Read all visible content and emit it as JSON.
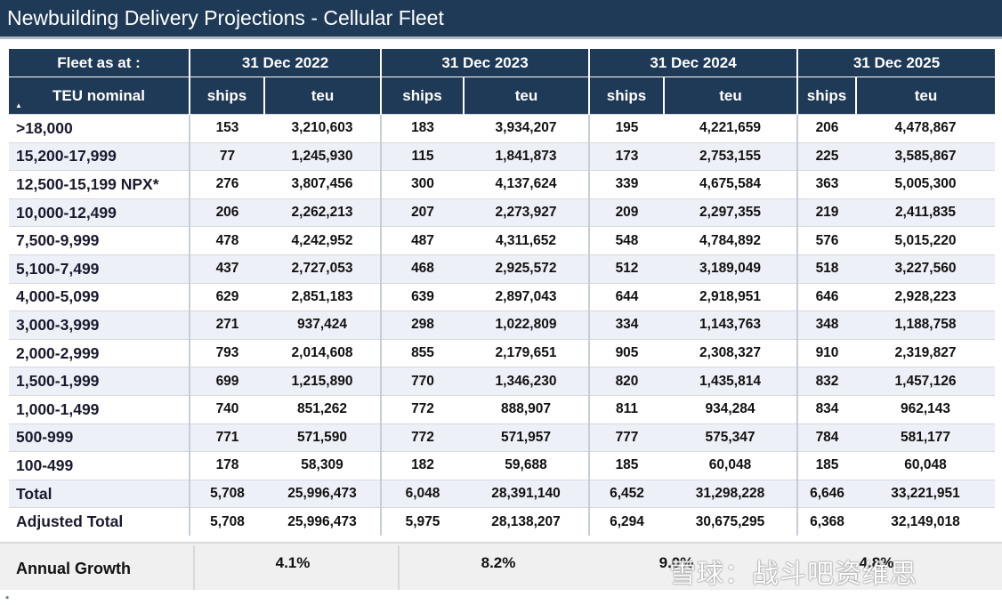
{
  "title": "Newbuilding Delivery Projections - Cellular Fleet",
  "header": {
    "fleet_as_at": "Fleet as at :",
    "teu_nominal": "TEU nominal",
    "dates": [
      "31 Dec 2022",
      "31 Dec 2023",
      "31 Dec 2024",
      "31 Dec 2025"
    ],
    "ships": "ships",
    "teu": "teu"
  },
  "rows": [
    {
      "label": ">18,000",
      "v": [
        "153",
        "3,210,603",
        "183",
        "3,934,207",
        "195",
        "4,221,659",
        "206",
        "4,478,867"
      ]
    },
    {
      "label": "15,200-17,999",
      "v": [
        "77",
        "1,245,930",
        "115",
        "1,841,873",
        "173",
        "2,753,155",
        "225",
        "3,585,867"
      ]
    },
    {
      "label": "12,500-15,199 NPX*",
      "v": [
        "276",
        "3,807,456",
        "300",
        "4,137,624",
        "339",
        "4,675,584",
        "363",
        "5,005,300"
      ]
    },
    {
      "label": "10,000-12,499",
      "v": [
        "206",
        "2,262,213",
        "207",
        "2,273,927",
        "209",
        "2,297,355",
        "219",
        "2,411,835"
      ]
    },
    {
      "label": "7,500-9,999",
      "v": [
        "478",
        "4,242,952",
        "487",
        "4,311,652",
        "548",
        "4,784,892",
        "576",
        "5,015,220"
      ]
    },
    {
      "label": "5,100-7,499",
      "v": [
        "437",
        "2,727,053",
        "468",
        "2,925,572",
        "512",
        "3,189,049",
        "518",
        "3,227,560"
      ]
    },
    {
      "label": "4,000-5,099",
      "v": [
        "629",
        "2,851,183",
        "639",
        "2,897,043",
        "644",
        "2,918,951",
        "646",
        "2,928,223"
      ]
    },
    {
      "label": "3,000-3,999",
      "v": [
        "271",
        "937,424",
        "298",
        "1,022,809",
        "334",
        "1,143,763",
        "348",
        "1,188,758"
      ]
    },
    {
      "label": "2,000-2,999",
      "v": [
        "793",
        "2,014,608",
        "855",
        "2,179,651",
        "905",
        "2,308,327",
        "910",
        "2,319,827"
      ]
    },
    {
      "label": "1,500-1,999",
      "v": [
        "699",
        "1,215,890",
        "770",
        "1,346,230",
        "820",
        "1,435,814",
        "832",
        "1,457,126"
      ]
    },
    {
      "label": "1,000-1,499",
      "v": [
        "740",
        "851,262",
        "772",
        "888,907",
        "811",
        "934,284",
        "834",
        "962,143"
      ]
    },
    {
      "label": "500-999",
      "v": [
        "771",
        "571,590",
        "772",
        "571,957",
        "777",
        "575,347",
        "784",
        "581,177"
      ]
    },
    {
      "label": "100-499",
      "v": [
        "178",
        "58,309",
        "182",
        "59,688",
        "185",
        "60,048",
        "185",
        "60,048"
      ]
    },
    {
      "label": "Total",
      "v": [
        "5,708",
        "25,996,473",
        "6,048",
        "28,391,140",
        "6,452",
        "31,298,228",
        "6,646",
        "33,221,951"
      ]
    },
    {
      "label": "Adjusted Total",
      "v": [
        "5,708",
        "25,996,473",
        "5,975",
        "28,138,207",
        "6,294",
        "30,675,295",
        "6,368",
        "32,149,018"
      ]
    }
  ],
  "growth": {
    "label": "Annual Growth",
    "values": [
      "4.1%",
      "8.2%",
      "9.0%",
      "4.8%"
    ]
  },
  "watermark": "雪球：战斗吧资维思",
  "footnote_mark": "*",
  "colors": {
    "header_bg": "#1f3a56",
    "row_alt": "#eef0f8",
    "growth_bg": "#f0f0f0"
  }
}
